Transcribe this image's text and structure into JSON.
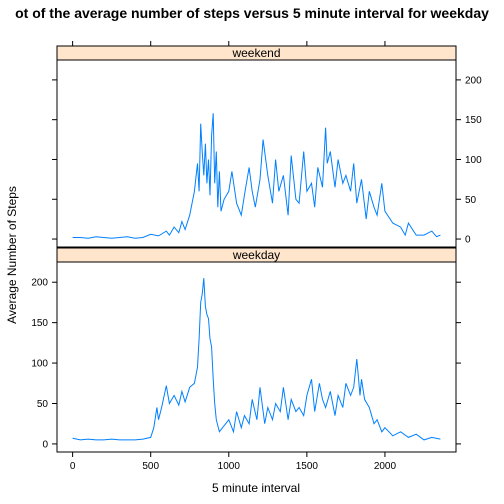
{
  "chart_data": {
    "type": "line",
    "title": "ot of the average number of steps versus 5 minute interval for weekday",
    "xlabel": "5 minute interval",
    "ylabel": "Average Number of Steps",
    "xlim": [
      -100,
      2455
    ],
    "x_ticks": [
      0,
      500,
      1000,
      1500,
      2000
    ],
    "x_tick_labels": [
      "0",
      "500",
      "1000",
      "1500",
      "2000"
    ],
    "color": "#0080ff",
    "strip_color": "#ffe5cc",
    "panels": [
      {
        "name": "weekend",
        "ylim": [
          -10,
          225
        ],
        "y_ticks": [
          0,
          50,
          100,
          150,
          200
        ],
        "y_tick_labels": [
          "0",
          "50",
          "100",
          "150",
          "200"
        ],
        "y_tick_side": "right",
        "x": [
          0,
          50,
          100,
          150,
          200,
          250,
          300,
          350,
          400,
          450,
          500,
          550,
          600,
          620,
          650,
          680,
          700,
          720,
          750,
          780,
          800,
          810,
          820,
          830,
          840,
          850,
          860,
          870,
          880,
          890,
          900,
          910,
          920,
          930,
          940,
          950,
          970,
          1000,
          1020,
          1050,
          1080,
          1100,
          1130,
          1150,
          1170,
          1200,
          1220,
          1250,
          1280,
          1300,
          1320,
          1350,
          1380,
          1400,
          1430,
          1450,
          1480,
          1500,
          1530,
          1550,
          1570,
          1600,
          1620,
          1630,
          1650,
          1680,
          1700,
          1730,
          1750,
          1780,
          1800,
          1820,
          1850,
          1880,
          1900,
          1930,
          1950,
          1980,
          2000,
          2050,
          2100,
          2130,
          2150,
          2200,
          2250,
          2300,
          2330,
          2355
        ],
        "y": [
          2,
          2,
          1,
          3,
          2,
          1,
          2,
          3,
          1,
          2,
          6,
          4,
          10,
          5,
          15,
          8,
          22,
          12,
          30,
          60,
          95,
          60,
          145,
          110,
          80,
          120,
          70,
          100,
          55,
          130,
          158,
          70,
          110,
          40,
          85,
          35,
          50,
          60,
          85,
          45,
          30,
          55,
          90,
          60,
          40,
          75,
          125,
          80,
          45,
          100,
          60,
          80,
          30,
          105,
          50,
          45,
          110,
          60,
          70,
          40,
          90,
          65,
          140,
          95,
          110,
          65,
          100,
          70,
          80,
          60,
          95,
          45,
          75,
          25,
          60,
          40,
          30,
          70,
          35,
          20,
          15,
          5,
          20,
          5,
          5,
          10,
          3,
          5
        ]
      },
      {
        "name": "weekday",
        "ylim": [
          -10,
          225
        ],
        "y_ticks": [
          0,
          50,
          100,
          150,
          200
        ],
        "y_tick_labels": [
          "0",
          "50",
          "100",
          "150",
          "200"
        ],
        "y_tick_side": "left",
        "x": [
          0,
          50,
          100,
          150,
          200,
          250,
          300,
          350,
          400,
          450,
          500,
          520,
          540,
          550,
          570,
          600,
          620,
          650,
          680,
          700,
          720,
          750,
          780,
          800,
          810,
          820,
          830,
          840,
          850,
          860,
          870,
          880,
          890,
          900,
          910,
          920,
          940,
          960,
          980,
          1000,
          1030,
          1050,
          1080,
          1100,
          1130,
          1150,
          1180,
          1200,
          1230,
          1250,
          1280,
          1300,
          1330,
          1350,
          1380,
          1400,
          1430,
          1450,
          1480,
          1500,
          1530,
          1550,
          1580,
          1600,
          1620,
          1650,
          1680,
          1700,
          1730,
          1750,
          1780,
          1800,
          1820,
          1840,
          1850,
          1870,
          1900,
          1930,
          1950,
          1980,
          2000,
          2050,
          2100,
          2150,
          2200,
          2250,
          2300,
          2355
        ],
        "y": [
          7,
          5,
          6,
          5,
          5,
          6,
          5,
          5,
          5,
          6,
          8,
          20,
          45,
          30,
          45,
          72,
          50,
          60,
          48,
          65,
          52,
          70,
          75,
          95,
          130,
          175,
          185,
          205,
          170,
          160,
          155,
          130,
          120,
          80,
          50,
          30,
          15,
          20,
          25,
          30,
          15,
          40,
          20,
          35,
          25,
          55,
          30,
          70,
          25,
          45,
          30,
          50,
          40,
          70,
          30,
          55,
          40,
          45,
          35,
          60,
          80,
          40,
          75,
          55,
          45,
          65,
          35,
          60,
          45,
          75,
          60,
          70,
          105,
          60,
          80,
          55,
          45,
          25,
          30,
          15,
          20,
          10,
          15,
          8,
          12,
          5,
          8,
          6
        ]
      }
    ]
  }
}
